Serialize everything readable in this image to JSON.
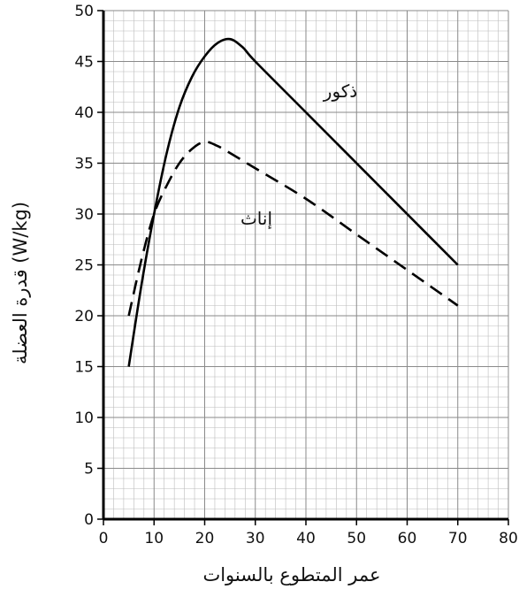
{
  "chart_data": {
    "type": "line",
    "title": "",
    "xlabel": "عمر المتطوع بالسنوات",
    "ylabel": "قدرة العضلة (W/kg)",
    "xlim": [
      0,
      80
    ],
    "ylim": [
      0,
      50
    ],
    "x_ticks": [
      "0",
      "10",
      "20",
      "30",
      "40",
      "50",
      "60",
      "70",
      "80"
    ],
    "y_ticks": [
      "0",
      "5",
      "10",
      "15",
      "20",
      "25",
      "30",
      "35",
      "40",
      "45",
      "50"
    ],
    "grid": true,
    "series": [
      {
        "name": "ذكور",
        "line_style": "solid",
        "color": "#000000",
        "x": [
          5,
          7.5,
          10,
          12.5,
          15,
          17.5,
          20,
          22.5,
          25,
          27.5,
          30,
          40,
          50,
          60,
          70
        ],
        "y": [
          15,
          23,
          30,
          36,
          40.5,
          43.5,
          45.5,
          46.8,
          47.2,
          46.4,
          45,
          40,
          35,
          30,
          25
        ]
      },
      {
        "name": "إناث",
        "line_style": "dashed",
        "color": "#000000",
        "x": [
          5,
          7.5,
          10,
          12.5,
          15,
          17.5,
          20,
          22.5,
          25,
          30,
          40,
          50,
          60,
          70
        ],
        "y": [
          20,
          25.5,
          30,
          32.8,
          35,
          36.4,
          37.1,
          36.7,
          36,
          34.5,
          31.5,
          28,
          24.5,
          21
        ]
      }
    ]
  }
}
